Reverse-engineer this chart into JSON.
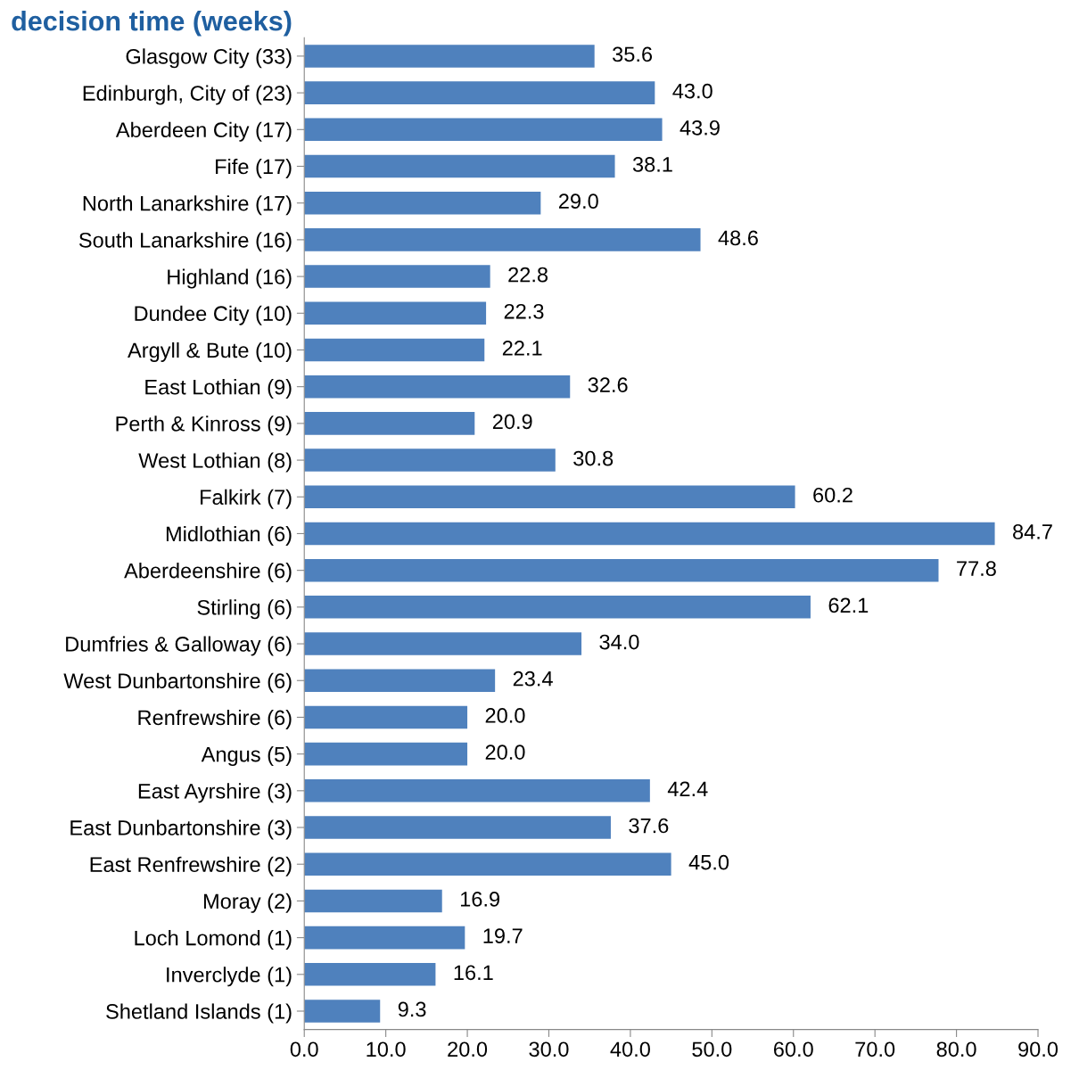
{
  "chart_data": {
    "type": "bar",
    "orientation": "horizontal",
    "title": "decision time (weeks)",
    "categories": [
      "Glasgow City (33)",
      "Edinburgh, City of (23)",
      "Aberdeen City (17)",
      "Fife (17)",
      "North Lanarkshire (17)",
      "South Lanarkshire (16)",
      "Highland (16)",
      "Dundee City (10)",
      "Argyll & Bute (10)",
      "East Lothian (9)",
      "Perth & Kinross (9)",
      "West Lothian (8)",
      "Falkirk (7)",
      "Midlothian (6)",
      "Aberdeenshire (6)",
      "Stirling (6)",
      "Dumfries & Galloway (6)",
      "West Dunbartonshire (6)",
      "Renfrewshire (6)",
      "Angus (5)",
      "East Ayrshire (3)",
      "East Dunbartonshire (3)",
      "East Renfrewshire (2)",
      "Moray (2)",
      "Loch Lomond (1)",
      "Inverclyde (1)",
      "Shetland Islands (1)"
    ],
    "values": [
      35.6,
      43.0,
      43.9,
      38.1,
      29.0,
      48.6,
      22.8,
      22.3,
      22.1,
      32.6,
      20.9,
      30.8,
      60.2,
      84.7,
      77.8,
      62.1,
      34.0,
      23.4,
      20.0,
      20.0,
      42.4,
      37.6,
      45.0,
      16.9,
      19.7,
      16.1,
      9.3
    ],
    "value_labels": [
      "35.6",
      "43.0",
      "43.9",
      "38.1",
      "29.0",
      "48.6",
      "22.8",
      "22.3",
      "22.1",
      "32.6",
      "20.9",
      "30.8",
      "60.2",
      "84.7",
      "77.8",
      "62.1",
      "34.0",
      "23.4",
      "20.0",
      "20.0",
      "42.4",
      "37.6",
      "45.0",
      "16.9",
      "19.7",
      "16.1",
      "9.3"
    ],
    "color": "#4f81bd",
    "xlim": [
      0,
      90
    ],
    "xticks": [
      {
        "value": 0,
        "label": "0.0"
      },
      {
        "value": 10,
        "label": "10.0"
      },
      {
        "value": 20,
        "label": "20.0"
      },
      {
        "value": 30,
        "label": "30.0"
      },
      {
        "value": 40,
        "label": "40.0"
      },
      {
        "value": 50,
        "label": "50.0"
      },
      {
        "value": 60,
        "label": "60.0"
      },
      {
        "value": 70,
        "label": "70.0"
      },
      {
        "value": 80,
        "label": "80.0"
      },
      {
        "value": 90,
        "label": "90.0"
      }
    ],
    "grid": false,
    "legend": false
  }
}
